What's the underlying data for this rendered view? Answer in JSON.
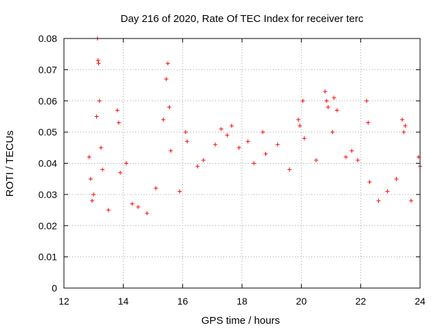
{
  "chart_data": {
    "type": "scatter",
    "title": "Day 216 of 2020, Rate Of TEC Index for receiver terc",
    "xlabel": "GPS time / hours",
    "ylabel": "ROTI / TECUs",
    "xlim": [
      12,
      24
    ],
    "ylim": [
      0,
      0.08
    ],
    "x_ticks": [
      "12",
      "14",
      "16",
      "18",
      "20",
      "22",
      "24"
    ],
    "y_ticks": [
      "0",
      "0.01",
      "0.02",
      "0.03",
      "0.04",
      "0.05",
      "0.06",
      "0.07",
      "0.08"
    ],
    "grid": true,
    "marker": "+",
    "color": "#ff0000",
    "series": [
      {
        "x": [
          12.85,
          12.9,
          12.95,
          13.0,
          13.1,
          13.13,
          13.15,
          13.17,
          13.2,
          13.25,
          13.3,
          13.5,
          13.8,
          13.85,
          13.9,
          14.1,
          14.3,
          14.5,
          14.8,
          15.1,
          15.35,
          15.45,
          15.5,
          15.55,
          15.6,
          15.9,
          16.1,
          16.15,
          16.5,
          16.7,
          17.1,
          17.3,
          17.5,
          17.65,
          17.9,
          18.2,
          18.4,
          18.7,
          18.8,
          19.2,
          19.6,
          19.9,
          19.95,
          20.05,
          20.1,
          20.5,
          20.8,
          20.85,
          20.9,
          21.05,
          21.1,
          21.2,
          21.5,
          21.7,
          21.9,
          22.2,
          22.25,
          22.3,
          22.6,
          22.9,
          23.2,
          23.4,
          23.45,
          23.5,
          23.7,
          23.95,
          24.0
        ],
        "y": [
          0.042,
          0.035,
          0.028,
          0.03,
          0.055,
          0.08,
          0.073,
          0.072,
          0.06,
          0.045,
          0.038,
          0.025,
          0.057,
          0.053,
          0.037,
          0.04,
          0.027,
          0.026,
          0.024,
          0.032,
          0.054,
          0.067,
          0.072,
          0.058,
          0.044,
          0.031,
          0.05,
          0.047,
          0.039,
          0.041,
          0.046,
          0.051,
          0.049,
          0.052,
          0.045,
          0.047,
          0.04,
          0.05,
          0.043,
          0.046,
          0.038,
          0.054,
          0.052,
          0.06,
          0.048,
          0.041,
          0.063,
          0.06,
          0.058,
          0.05,
          0.061,
          0.057,
          0.042,
          0.044,
          0.041,
          0.06,
          0.053,
          0.034,
          0.028,
          0.031,
          0.035,
          0.054,
          0.05,
          0.052,
          0.028,
          0.042,
          0.039
        ]
      }
    ]
  }
}
